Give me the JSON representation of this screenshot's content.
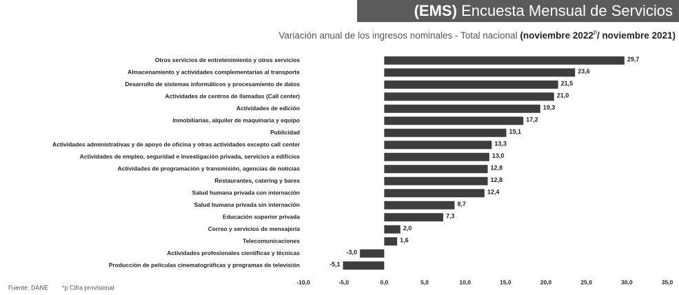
{
  "chart_data": {
    "type": "bar",
    "orientation": "horizontal",
    "title_prefix": "(EMS)",
    "title": "Encuesta Mensual de Servicios",
    "subtitle": "Variación anual de los ingresos nominales - Total nacional",
    "subtitle_period": "(noviembre 2022",
    "subtitle_mark": "p",
    "subtitle_period_end": "/ noviembre 2021)",
    "source": "Fuente: DANE",
    "note": "*p Cifra provisional",
    "color": "#3d3d3d",
    "categories": [
      "Otros servicios de entretenimiento y otros servicios",
      "Almacenamiento y actividades complementarias al transporte",
      "Desarrollo de sistemas informáticos y procesamiento de datos",
      "Actividades de centros de llamadas (Call center)",
      "Actividades de edición",
      "Inmobiliarias, alquiler de maquinaria y equipo",
      "Publicidad",
      "Actividades administrativas y de apoyo de oficina y otras actividades excepto call center",
      "Actividades de empleo, seguridad e investigación privada, servicios a edificios",
      "Actividades de programación y transmisión,  agencias de noticias",
      "Restaurantes, catering y bares",
      "Salud humana privada con internación",
      "Salud humana privada sin internación",
      "Educación superior privada",
      "Correo y servicios de mensajería",
      "Telecomunicaciones",
      "Actividades profesionales científicas y técnicas",
      "Producción de películas cinematográficas y programas de televisión"
    ],
    "values": [
      29.7,
      23.6,
      21.5,
      21.0,
      19.3,
      17.2,
      15.1,
      13.3,
      13.0,
      12.8,
      12.8,
      12.4,
      8.7,
      7.3,
      2.0,
      1.6,
      -3.0,
      -5.1
    ],
    "value_labels": [
      "29,7",
      "23,6",
      "21,5",
      "21,0",
      "19,3",
      "17,2",
      "15,1",
      "13,3",
      "13,0",
      "12,8",
      "12,8",
      "12,4",
      "8,7",
      "7,3",
      "2,0",
      "1,6",
      "-3,0",
      "-5,1"
    ],
    "xlim": [
      -10,
      35
    ],
    "xticks": [
      {
        "value": -10,
        "label": "-10,0"
      },
      {
        "value": -5,
        "label": "-5,0"
      },
      {
        "value": 0,
        "label": "0,0"
      },
      {
        "value": 5,
        "label": "5,0"
      },
      {
        "value": 10,
        "label": "10,0"
      },
      {
        "value": 15,
        "label": "15,0"
      },
      {
        "value": 20,
        "label": "20,0"
      },
      {
        "value": 25,
        "label": "25,0"
      },
      {
        "value": 30,
        "label": "30,0"
      },
      {
        "value": 35,
        "label": "35,0"
      }
    ],
    "grid": false
  }
}
